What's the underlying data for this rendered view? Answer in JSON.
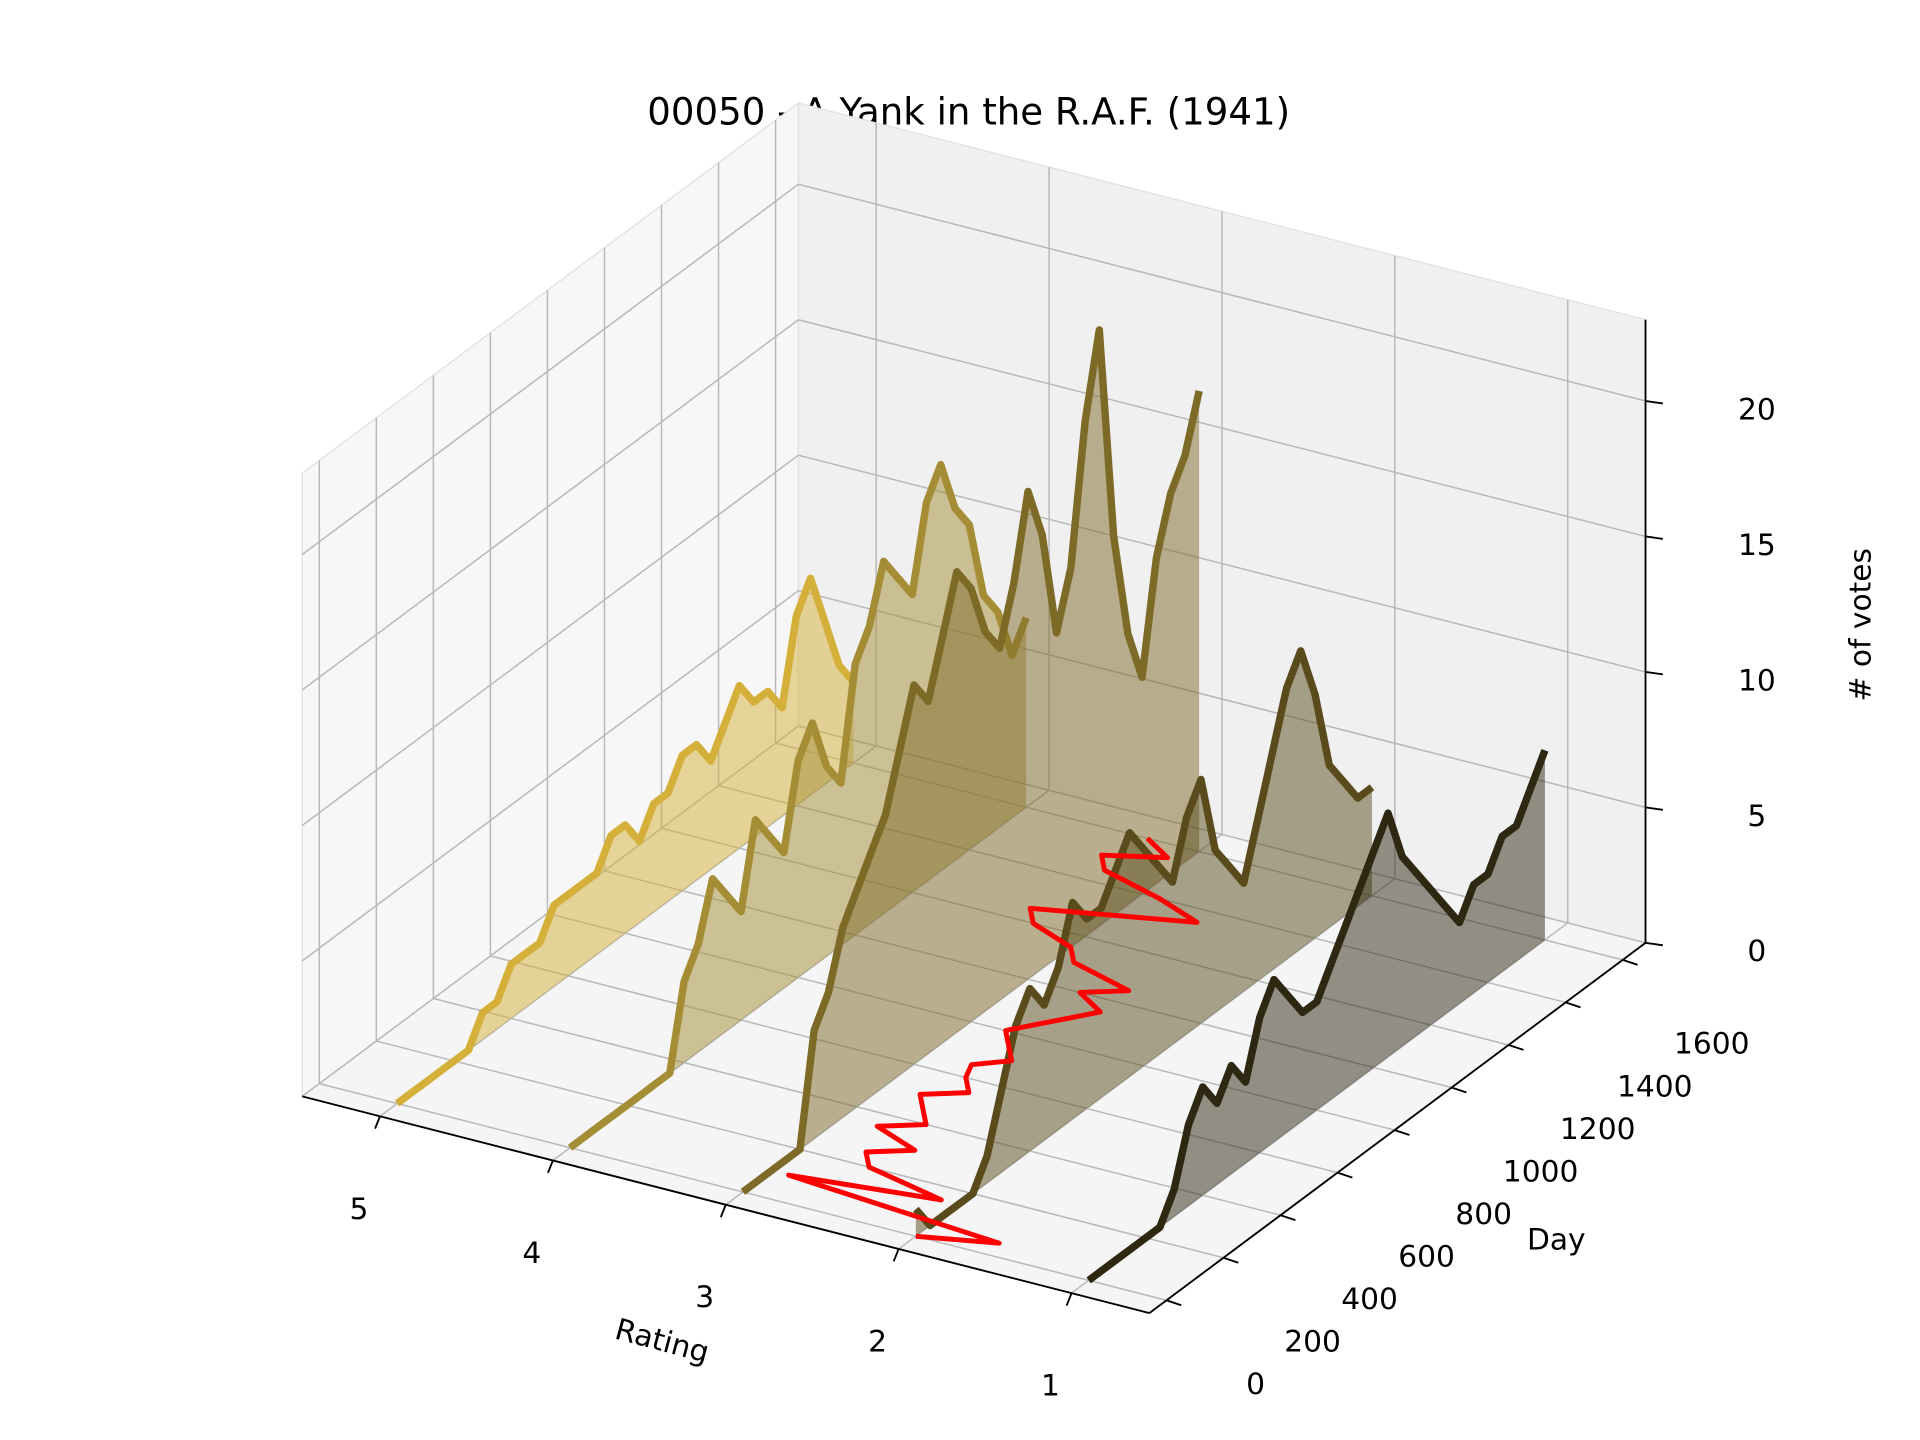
{
  "chart_data": {
    "type": "line3d",
    "title": "00050 - A Yank in the R.A.F. (1941)",
    "xlabel": "Rating",
    "ylabel": "Day",
    "zlabel": "# of votes",
    "xlim": [
      0.55,
      5.45
    ],
    "ylim": [
      -60,
      1680
    ],
    "zlim": [
      0,
      23
    ],
    "xticks": [
      1,
      2,
      3,
      4,
      5
    ],
    "yticks": [
      0,
      200,
      400,
      600,
      800,
      1000,
      1200,
      1400,
      1600
    ],
    "zticks": [
      0,
      5,
      10,
      15,
      20
    ],
    "grid": true,
    "days": [
      0,
      50,
      100,
      150,
      200,
      250,
      300,
      350,
      400,
      450,
      500,
      550,
      600,
      650,
      700,
      750,
      800,
      850,
      900,
      950,
      1000,
      1050,
      1100,
      1150,
      1200,
      1250,
      1300,
      1350,
      1400,
      1450,
      1500,
      1550,
      1600
    ],
    "series": [
      {
        "rating": 5,
        "color": "#d4b03a",
        "values": [
          0,
          0,
          0,
          0,
          0,
          0,
          1,
          1,
          2,
          2,
          2,
          3,
          3,
          3,
          3,
          4,
          4,
          3,
          4,
          4,
          5,
          5,
          4,
          5,
          6,
          5,
          5,
          4,
          7,
          8,
          6,
          4,
          3
        ]
      },
      {
        "rating": 4,
        "color": "#a48d35",
        "values": [
          0,
          0,
          0,
          0,
          0,
          0,
          0,
          0,
          3,
          4,
          6,
          5,
          4,
          7,
          6,
          5,
          8,
          9,
          7,
          6,
          10,
          11,
          13,
          12,
          11,
          14,
          15,
          13,
          12,
          9,
          8,
          6,
          7
        ]
      },
      {
        "rating": 3,
        "color": "#7e6a27",
        "values": [
          0,
          0,
          0,
          0,
          0,
          4,
          5,
          7,
          8,
          9,
          10,
          12,
          14,
          13,
          15,
          17,
          16,
          14,
          13,
          15,
          18,
          16,
          12,
          14,
          19,
          22,
          14,
          10,
          8,
          12,
          14,
          15,
          17
        ]
      },
      {
        "rating": 2,
        "color": "#5a4b1c",
        "values": [
          1,
          0,
          0,
          0,
          0,
          1,
          3,
          5,
          6,
          5,
          6,
          8,
          7,
          7,
          8,
          9,
          8,
          7,
          6,
          8,
          9,
          6,
          5,
          4,
          6,
          8,
          10,
          11,
          9,
          6,
          5,
          4,
          4
        ]
      },
      {
        "rating": 1,
        "color": "#2e2812",
        "values": [
          0,
          0,
          0,
          0,
          0,
          0,
          1,
          3,
          4,
          3,
          4,
          3,
          5,
          6,
          5,
          4,
          4,
          5,
          6,
          7,
          8,
          9,
          7,
          6,
          5,
          4,
          3,
          4,
          4,
          5,
          5,
          6,
          7
        ]
      }
    ],
    "trend": {
      "color": "#ff0000",
      "values": [
        2.0,
        1.6,
        2.9,
        2.1,
        2.6,
        2.7,
        2.5,
        2.8,
        2.6,
        2.7,
        2.8,
        2.6,
        2.7,
        2.75,
        2.6,
        2.7,
        2.8,
        2.7,
        2.6,
        2.5,
        2.7,
        2.5,
        2.9,
        3.0,
        3.3,
        3.4,
        3.0,
        2.6,
        2.9,
        3.3,
        3.4,
        3.1,
        3.3
      ]
    }
  }
}
